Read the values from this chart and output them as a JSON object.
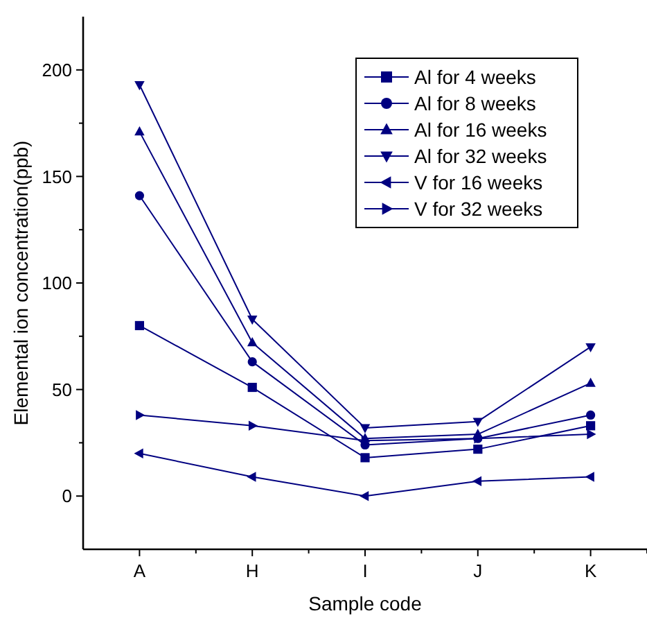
{
  "chart_data": {
    "type": "line",
    "xlabel": "Sample code",
    "ylabel": "Elemental ion concentration(ppb)",
    "categories": [
      "A",
      "H",
      "I",
      "J",
      "K"
    ],
    "ylim": [
      -25,
      225
    ],
    "yticks": [
      0,
      {
        "value": 25,
        "label": null
      },
      50,
      {
        "value": 75,
        "label": null
      },
      100,
      {
        "value": 125,
        "label": null
      },
      150,
      {
        "value": 175,
        "label": null
      },
      200
    ],
    "legend": "top right",
    "grid": false,
    "line_style": "solid",
    "series": [
      {
        "name": "Al for 4 weeks",
        "color": "#000080",
        "marker": "square",
        "values": [
          80,
          51,
          18,
          22,
          33
        ]
      },
      {
        "name": "Al for 8 weeks",
        "color": "#000080",
        "marker": "circle",
        "values": [
          141,
          63,
          24,
          27,
          38
        ]
      },
      {
        "name": "Al for 16 weeks",
        "color": "#000080",
        "marker": "triangle",
        "values": [
          171,
          72,
          27,
          29,
          53
        ]
      },
      {
        "name": "Al for 32 weeks",
        "color": "#000080",
        "marker": "triangle-down",
        "values": [
          193,
          83,
          32,
          35,
          70
        ]
      },
      {
        "name": "V for 16 weeks",
        "color": "#000080",
        "marker": "triangle-left",
        "values": [
          20,
          9,
          0,
          7,
          9
        ]
      },
      {
        "name": "V for 32 weeks",
        "color": "#000080",
        "marker": "triangle-right",
        "values": [
          38,
          33,
          26,
          27,
          29
        ]
      }
    ]
  }
}
